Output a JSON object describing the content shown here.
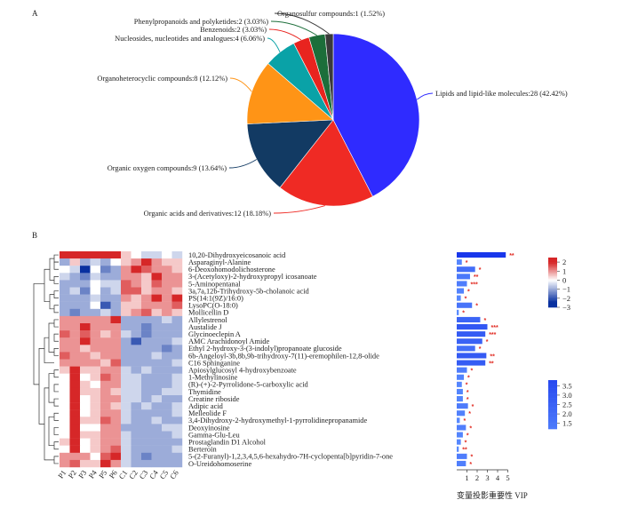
{
  "panel_a_label": "A",
  "panel_b_label": "B",
  "vip_axis_title": "变量投影重要性 VIP",
  "chart_data": [
    {
      "type": "pie",
      "slices": [
        {
          "label": "Lipids and lipid-like molecules:28 (42.42%)",
          "value": 28,
          "color": "#2f2bff"
        },
        {
          "label": "Organic acids and derivatives:12 (18.18%)",
          "value": 12,
          "color": "#ef2a24"
        },
        {
          "label": "Organic oxygen compounds:9 (13.64%)",
          "value": 9,
          "color": "#123a63"
        },
        {
          "label": "Organoheterocyclic compounds:8 (12.12%)",
          "value": 8,
          "color": "#ff9416"
        },
        {
          "label": "Nucleosides, nucleotides and analogues:4 (6.06%)",
          "value": 4,
          "color": "#0aa2a7"
        },
        {
          "label": "Benzenoids:2 (3.03%)",
          "value": 2,
          "color": "#e8241f"
        },
        {
          "label": "Phenylpropanoids and polyketides:2 (3.03%)",
          "value": 2,
          "color": "#1c6e3a"
        },
        {
          "label": "Organosulfur compounds:1 (1.52%)",
          "value": 1,
          "color": "#3a3a3a"
        }
      ]
    },
    {
      "type": "heatmap",
      "columns": [
        "P1",
        "P2",
        "P3",
        "P4",
        "P5",
        "P6",
        "C1",
        "C2",
        "C3",
        "C4",
        "C5",
        "C6"
      ],
      "rows": [
        "10,20-Dihydroxyeicosanoic acid",
        "Asparaginyl-Alanine",
        "6-Deoxohomodolichosterone",
        "3-(Acetyloxy)-2-hydroxypropyl icosanoate",
        "5-Aminopentanal",
        "3a,7a,12b-Trihydroxy-5b-cholanoic acid",
        "PS(14:1(9Z)/16:0)",
        "LysoPC(O-18:0)",
        "Mollicellin D",
        "Allylestrenol",
        "Austalide J",
        "Glycinoeclepin A",
        "AMC Arachidonoyl Amide",
        "Ethyl 2-hydroxy-3-(3-indolyl)propanoate glucoside",
        "6b-Angeloyl-3b,8b,9b-trihydroxy-7(11)-eremophilen-12,8-olide",
        "C16 Sphinganine",
        "Apiosylglucosyl 4-hydroxybenzoate",
        "1-Methylinosine",
        "(R)-(+)-2-Pyrrolidone-5-carboxylic acid",
        "Thymidine",
        "Creatine riboside",
        "Adipic acid",
        "Melleolide F",
        "3,4-Dihydroxy-2-hydroxymethyl-1-pyrrolidinepropanamide",
        "Deoxyinosine",
        "Gamma-Glu-Leu",
        "Prostaglandin D1 Alcohol",
        "Berteroin",
        "5-(2-Furanyl)-1,2,3,4,5,6-hexahydro-7H-cyclopenta[b]pyridin-7-one",
        "O-Ureidohomoserine"
      ],
      "values": [
        [
          2,
          2,
          2,
          2,
          2,
          2,
          0.5,
          0,
          -0.5,
          -0.5,
          0,
          -0.5
        ],
        [
          -1,
          0.5,
          -1,
          -0.5,
          -1,
          0,
          0.5,
          1,
          2,
          1,
          0.5,
          0.5
        ],
        [
          0,
          -0.5,
          -3,
          0,
          -1.5,
          -1,
          1,
          2,
          1.5,
          1,
          1,
          0.5
        ],
        [
          -0.5,
          -1,
          -1.5,
          -0.5,
          -1,
          -1,
          1,
          1,
          0.5,
          2,
          1,
          1
        ],
        [
          -1,
          -1,
          -1,
          0,
          -0.5,
          -0.5,
          1.5,
          1,
          0.5,
          1.5,
          1,
          1
        ],
        [
          -1,
          -0.5,
          -1.5,
          0,
          -1,
          -0.5,
          1.5,
          1.5,
          0.5,
          1,
          1,
          0.5
        ],
        [
          -1,
          -1,
          -1,
          -0.5,
          -1,
          -1,
          1,
          0.5,
          1,
          2,
          1,
          2
        ],
        [
          -1,
          -1,
          -1,
          0,
          -2,
          -1,
          0.5,
          0.5,
          1,
          1,
          1,
          1.5
        ],
        [
          -1,
          -1.5,
          -1,
          -1,
          -0.5,
          -1,
          0.5,
          1,
          1.5,
          0.5,
          1,
          0.5
        ],
        [
          1,
          1,
          1,
          1,
          1,
          2,
          -1,
          -1,
          -1,
          -1,
          -0.5,
          -1
        ],
        [
          1,
          1,
          2,
          1,
          1,
          1,
          -1,
          -1,
          -1.5,
          -1,
          -1,
          -1
        ],
        [
          1.5,
          1,
          1.5,
          1,
          0.5,
          1,
          -0.5,
          -1,
          -1.5,
          -1,
          -1,
          -1
        ],
        [
          1,
          1,
          2,
          1,
          1,
          1,
          -1,
          -2,
          -1,
          -1,
          -1,
          -0.5
        ],
        [
          1,
          1,
          0.5,
          1,
          1,
          1,
          -1,
          -1,
          -1,
          -1,
          -1.5,
          -1
        ],
        [
          1.5,
          1,
          1,
          0.5,
          1,
          1,
          -1,
          -1,
          -1,
          -0.5,
          -1,
          -1
        ],
        [
          1,
          1,
          1,
          1,
          0.5,
          1.5,
          -1,
          -1,
          -1,
          -1,
          -1,
          -0.5
        ],
        [
          0.5,
          2,
          0.5,
          0.5,
          1,
          1,
          -0.5,
          -1,
          -0.5,
          -1,
          -1,
          -1
        ],
        [
          0,
          2,
          0,
          0.5,
          1.5,
          1,
          -0.5,
          -0.5,
          -1,
          -1,
          -1,
          -0.5
        ],
        [
          0,
          2,
          0.5,
          0,
          1,
          1,
          -0.5,
          -0.5,
          -1,
          -1,
          -1,
          -0.5
        ],
        [
          0,
          2,
          0.5,
          0.5,
          1,
          0.5,
          -0.5,
          -0.5,
          -1,
          -1,
          -0.5,
          -0.5
        ],
        [
          0,
          2,
          0,
          0.5,
          1,
          1,
          -0.5,
          -0.5,
          -1,
          -0.5,
          -1,
          -1
        ],
        [
          0,
          2.5,
          0,
          0.5,
          1,
          0.5,
          -0.5,
          -1,
          -0.5,
          -1,
          -1,
          -0.5
        ],
        [
          0,
          2.5,
          0,
          0.5,
          1,
          1,
          -0.5,
          -1,
          -1,
          -1,
          -1,
          -0.5
        ],
        [
          0,
          2,
          0.5,
          0.5,
          1.5,
          1,
          -0.5,
          -1,
          -1,
          -0.5,
          -1,
          -1
        ],
        [
          0,
          2.5,
          0,
          0,
          1,
          1,
          -1,
          -1,
          -1,
          -1,
          -0.5,
          -0.5
        ],
        [
          0,
          2,
          0.5,
          0.5,
          1,
          1,
          -0.5,
          -1,
          -1,
          -1,
          -1,
          -0.5
        ],
        [
          0.5,
          2.5,
          0,
          0.5,
          1,
          1,
          -0.5,
          -1,
          -1,
          -1,
          -1,
          -1
        ],
        [
          0,
          2,
          0,
          0.5,
          1,
          1.5,
          -0.5,
          -1,
          -1,
          -1,
          -1,
          -0.5
        ],
        [
          1,
          1,
          1,
          0,
          1.5,
          2,
          -0.5,
          -1,
          -1.5,
          -1,
          -1,
          -1
        ],
        [
          1,
          1.5,
          0.5,
          0.5,
          2,
          1,
          -0.5,
          -1,
          -1,
          -1,
          -1,
          -1
        ]
      ],
      "color_scale_ticks": [
        2,
        1,
        0,
        -1,
        -2,
        -3
      ]
    },
    {
      "type": "bar",
      "orientation": "horizontal",
      "categories_ref": "rows",
      "values": [
        4.8,
        0.5,
        1.8,
        1.3,
        1.0,
        0.7,
        0.4,
        1.5,
        0.2,
        2.3,
        3.0,
        2.8,
        2.5,
        1.8,
        2.9,
        2.8,
        1.0,
        0.7,
        0.5,
        0.6,
        0.6,
        1.1,
        0.8,
        0.3,
        0.9,
        0.6,
        0.4,
        0.2,
        1.0,
        0.9
      ],
      "significance": [
        "**",
        "*",
        "*",
        "**",
        "***",
        "*",
        "*",
        "*",
        "*",
        "*",
        "***",
        "***",
        "*",
        "*",
        "**",
        "**",
        "*",
        "*",
        "*",
        "*",
        "*",
        "*",
        "*",
        "*",
        "*",
        "*",
        "*",
        "**",
        "*",
        "*"
      ],
      "x_ticks": [
        1,
        2,
        3,
        4,
        5
      ],
      "xlim": [
        0,
        5
      ],
      "color_scale_ticks": [
        3.5,
        3.0,
        2.5,
        2.0,
        1.5
      ]
    }
  ]
}
